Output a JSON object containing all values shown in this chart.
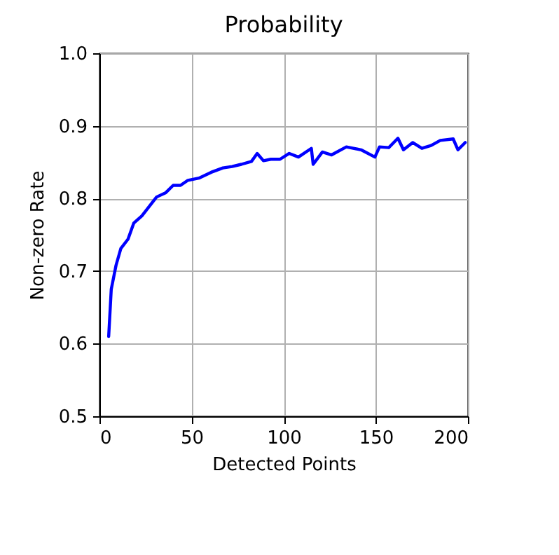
{
  "chart_data": {
    "type": "line",
    "title": "Probability",
    "xlabel": "Detected Points",
    "ylabel": "Non-zero Rate",
    "xlim": [
      0,
      200
    ],
    "xticks": [
      0,
      50,
      100,
      150,
      200
    ],
    "ylim": [
      0.5,
      1.0
    ],
    "yticks": [
      {
        "value": 0.5,
        "label": "0.5"
      },
      {
        "value": 0.6,
        "label": "0.6"
      },
      {
        "value": 0.7,
        "label": "0.7"
      },
      {
        "value": 0.8,
        "label": "0.8"
      },
      {
        "value": 0.9,
        "label": "0.9"
      },
      {
        "value": 1.0,
        "label": "1.0"
      }
    ],
    "grid": true,
    "marker": "none",
    "line_style": "solid",
    "x": [
      5,
      6.4,
      9,
      11.6,
      15.5,
      18.6,
      23,
      27,
      31,
      36,
      40,
      44,
      48,
      54,
      60.6,
      67,
      72,
      77,
      82.5,
      85.6,
      89,
      93,
      98,
      103,
      108,
      115,
      116,
      121,
      126,
      134,
      142,
      149.5,
      152,
      157,
      162,
      165,
      170,
      175,
      180,
      185,
      192,
      194.6,
      198.5
    ],
    "series": [
      {
        "color": "#0000ff",
        "values": [
          0.61,
          0.675,
          0.708,
          0.731,
          0.744,
          0.766,
          0.776,
          0.789,
          0.802,
          0.808,
          0.818,
          0.818,
          0.825,
          0.828,
          0.836,
          0.842,
          0.844,
          0.847,
          0.851,
          0.862,
          0.852,
          0.854,
          0.854,
          0.862,
          0.857,
          0.869,
          0.847,
          0.864,
          0.86,
          0.871,
          0.867,
          0.857,
          0.871,
          0.87,
          0.883,
          0.867,
          0.877,
          0.869,
          0.873,
          0.88,
          0.882,
          0.867,
          0.877
        ]
      }
    ]
  }
}
